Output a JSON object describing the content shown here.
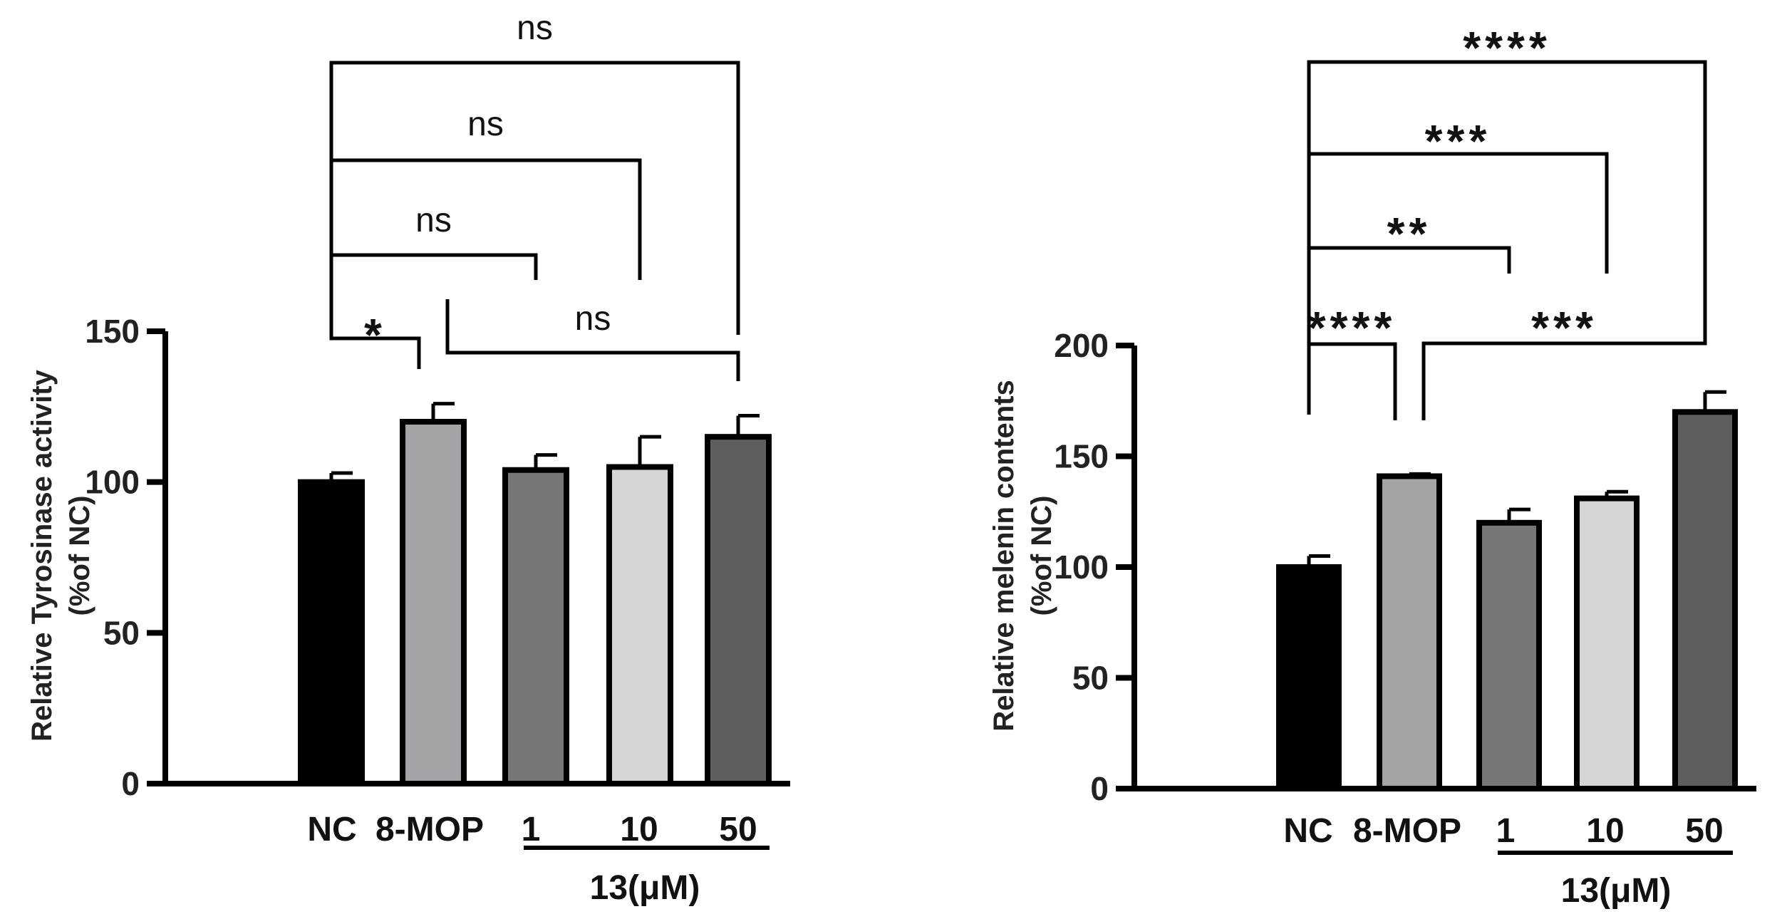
{
  "chart_data": [
    {
      "type": "bar",
      "panel": "left",
      "title": "",
      "xlabel": "",
      "ylabel": "Relative Tyrosinase activity",
      "ylabel_sub": "(%of NC)",
      "ylim": [
        0,
        150
      ],
      "yticks": [
        0,
        50,
        100,
        150
      ],
      "categories": [
        "NC",
        "8-MOP",
        "1",
        "10",
        "50"
      ],
      "values": [
        100,
        120,
        104,
        105,
        115
      ],
      "errors": [
        3,
        6,
        5,
        10,
        7
      ],
      "colors": [
        "#000000",
        "#a3a3a8",
        "#767676",
        "#d6d6d6",
        "#5e5e5e"
      ],
      "group_label": "13(μM)",
      "group_categories": [
        2,
        4
      ],
      "comparisons": [
        {
          "from": 0,
          "to": 1,
          "label": "*"
        },
        {
          "from": 1,
          "to": 4,
          "label": "ns"
        },
        {
          "from": 0,
          "to": 2,
          "label": "ns"
        },
        {
          "from": 0,
          "to": 3,
          "label": "ns"
        },
        {
          "from": 0,
          "to": 4,
          "label": "ns"
        }
      ]
    },
    {
      "type": "bar",
      "panel": "right",
      "title": "",
      "xlabel": "",
      "ylabel": "Relative melenin contents",
      "ylabel_sub": "(%of NC)",
      "ylim": [
        0,
        200
      ],
      "yticks": [
        0,
        50,
        100,
        150,
        200
      ],
      "categories": [
        "NC",
        "8-MOP",
        "1",
        "10",
        "50"
      ],
      "values": [
        100,
        141,
        120,
        131,
        170
      ],
      "errors": [
        5,
        1,
        6,
        3,
        9
      ],
      "colors": [
        "#000000",
        "#a3a3a8",
        "#767676",
        "#d6d6d6",
        "#5e5e5e"
      ],
      "group_label": "13(μM)",
      "group_categories": [
        2,
        4
      ],
      "comparisons": [
        {
          "from": 0,
          "to": 1,
          "label": "****"
        },
        {
          "from": 1,
          "to": 4,
          "label": "***"
        },
        {
          "from": 0,
          "to": 2,
          "label": "**"
        },
        {
          "from": 0,
          "to": 3,
          "label": "***"
        },
        {
          "from": 0,
          "to": 4,
          "label": "****"
        }
      ]
    }
  ]
}
